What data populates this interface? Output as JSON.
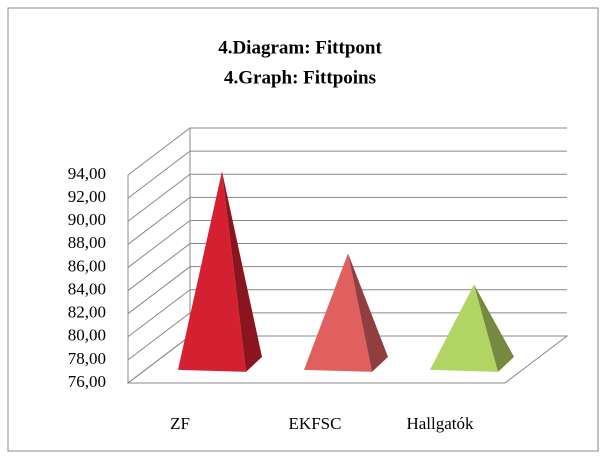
{
  "chart_data": {
    "type": "pyramid3d",
    "title": [
      "4.Diagram:  Fittpont",
      "4.Graph: Fittpoins"
    ],
    "categories": [
      "ZF",
      "EKFSC",
      "Hallgatók"
    ],
    "values": [
      93.1,
      86.0,
      83.3
    ],
    "colors": [
      "#d42030",
      "#e06060",
      "#b2d464"
    ],
    "ylim": [
      76,
      94
    ],
    "yticks": [
      {
        "value": 76,
        "label": "76,00"
      },
      {
        "value": 78,
        "label": "78,00"
      },
      {
        "value": 80,
        "label": "80,00"
      },
      {
        "value": 82,
        "label": "82,00"
      },
      {
        "value": 84,
        "label": "84,00"
      },
      {
        "value": 86,
        "label": "86,00"
      },
      {
        "value": 88,
        "label": "88,00"
      },
      {
        "value": 90,
        "label": "90,00"
      },
      {
        "value": 92,
        "label": "92,00"
      },
      {
        "value": 94,
        "label": "94,00"
      }
    ],
    "grid": true
  }
}
